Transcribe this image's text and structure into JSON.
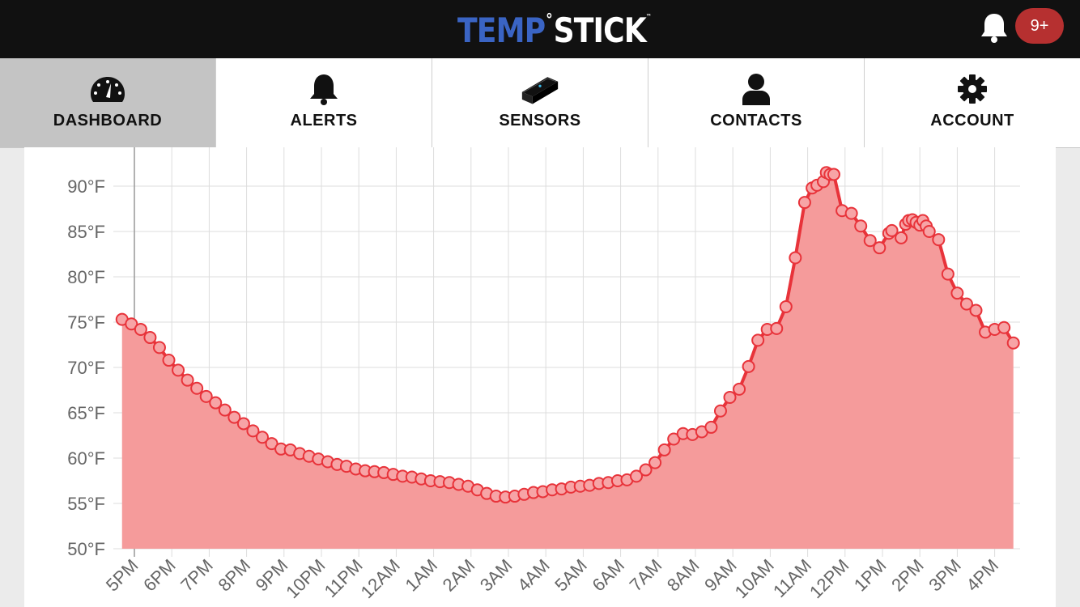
{
  "header": {
    "logo_temp": "TEMP",
    "logo_degree": "°",
    "logo_stick": "STICK",
    "logo_tm": "™",
    "notification_badge": "9+"
  },
  "nav": {
    "items": [
      {
        "label": "DASHBOARD",
        "icon": "gauge-icon",
        "active": true
      },
      {
        "label": "ALERTS",
        "icon": "bell-icon",
        "active": false
      },
      {
        "label": "SENSORS",
        "icon": "sensor-device-icon",
        "active": false
      },
      {
        "label": "CONTACTS",
        "icon": "person-icon",
        "active": false
      },
      {
        "label": "ACCOUNT",
        "icon": "gear-icon",
        "active": false
      }
    ]
  },
  "colors": {
    "topbar": "#111111",
    "logo_blue": "#3a64c4",
    "badge": "#b63030",
    "line": "#e8333a",
    "fill": "#f59b9b",
    "point_fill": "#f7a4a6"
  },
  "chart_data": {
    "type": "area",
    "title": "",
    "xlabel": "",
    "ylabel": "",
    "y_unit": "°F",
    "ylim": [
      50,
      95
    ],
    "y_ticks": [
      "50°F",
      "55°F",
      "60°F",
      "65°F",
      "70°F",
      "75°F",
      "80°F",
      "85°F",
      "90°F"
    ],
    "x_ticks": [
      "5PM",
      "6PM",
      "7PM",
      "8PM",
      "9PM",
      "10PM",
      "11PM",
      "12AM",
      "1AM",
      "2AM",
      "3AM",
      "4AM",
      "5AM",
      "6AM",
      "7AM",
      "8AM",
      "9AM",
      "10AM",
      "11AM",
      "12PM",
      "1PM",
      "2PM",
      "3PM",
      "4PM"
    ],
    "x_start": "4:40PM",
    "x_end": "4:30PM",
    "grid": true,
    "series": [
      {
        "points": [
          [
            -0.33,
            75.3
          ],
          [
            -0.08,
            74.8
          ],
          [
            0.17,
            74.2
          ],
          [
            0.42,
            73.3
          ],
          [
            0.67,
            72.2
          ],
          [
            0.92,
            70.8
          ],
          [
            1.17,
            69.7
          ],
          [
            1.42,
            68.6
          ],
          [
            1.67,
            67.7
          ],
          [
            1.92,
            66.8
          ],
          [
            2.17,
            66.1
          ],
          [
            2.42,
            65.3
          ],
          [
            2.67,
            64.5
          ],
          [
            2.92,
            63.8
          ],
          [
            3.17,
            63.0
          ],
          [
            3.42,
            62.3
          ],
          [
            3.67,
            61.6
          ],
          [
            3.92,
            61.0
          ],
          [
            4.17,
            60.9
          ],
          [
            4.42,
            60.5
          ],
          [
            4.67,
            60.2
          ],
          [
            4.92,
            59.9
          ],
          [
            5.17,
            59.6
          ],
          [
            5.42,
            59.3
          ],
          [
            5.67,
            59.1
          ],
          [
            5.92,
            58.8
          ],
          [
            6.17,
            58.6
          ],
          [
            6.42,
            58.5
          ],
          [
            6.67,
            58.4
          ],
          [
            6.92,
            58.2
          ],
          [
            7.17,
            58.0
          ],
          [
            7.42,
            57.9
          ],
          [
            7.67,
            57.7
          ],
          [
            7.92,
            57.5
          ],
          [
            8.17,
            57.4
          ],
          [
            8.42,
            57.3
          ],
          [
            8.67,
            57.1
          ],
          [
            8.92,
            56.9
          ],
          [
            9.17,
            56.5
          ],
          [
            9.42,
            56.1
          ],
          [
            9.67,
            55.8
          ],
          [
            9.92,
            55.7
          ],
          [
            10.17,
            55.8
          ],
          [
            10.42,
            56.0
          ],
          [
            10.67,
            56.2
          ],
          [
            10.92,
            56.3
          ],
          [
            11.17,
            56.5
          ],
          [
            11.42,
            56.6
          ],
          [
            11.67,
            56.8
          ],
          [
            11.92,
            56.9
          ],
          [
            12.17,
            57.0
          ],
          [
            12.42,
            57.2
          ],
          [
            12.67,
            57.3
          ],
          [
            12.92,
            57.5
          ],
          [
            13.17,
            57.6
          ],
          [
            13.42,
            58.0
          ],
          [
            13.67,
            58.7
          ],
          [
            13.92,
            59.5
          ],
          [
            14.17,
            60.9
          ],
          [
            14.42,
            62.1
          ],
          [
            14.67,
            62.7
          ],
          [
            14.92,
            62.6
          ],
          [
            15.17,
            62.9
          ],
          [
            15.42,
            63.4
          ],
          [
            15.67,
            65.2
          ],
          [
            15.92,
            66.7
          ],
          [
            16.17,
            67.6
          ],
          [
            16.42,
            70.1
          ],
          [
            16.67,
            73.0
          ],
          [
            16.92,
            74.2
          ],
          [
            17.17,
            74.3
          ],
          [
            17.42,
            76.7
          ],
          [
            17.67,
            82.1
          ],
          [
            17.92,
            88.2
          ],
          [
            18.12,
            89.8
          ],
          [
            18.25,
            90.1
          ],
          [
            18.42,
            90.5
          ],
          [
            18.5,
            91.5
          ],
          [
            18.6,
            91.3
          ],
          [
            18.7,
            91.3
          ],
          [
            18.92,
            87.3
          ],
          [
            19.17,
            87.0
          ],
          [
            19.42,
            85.6
          ],
          [
            19.67,
            84.0
          ],
          [
            19.92,
            83.2
          ],
          [
            20.17,
            84.8
          ],
          [
            20.25,
            85.1
          ],
          [
            20.5,
            84.3
          ],
          [
            20.62,
            85.8
          ],
          [
            20.7,
            86.2
          ],
          [
            20.8,
            86.3
          ],
          [
            20.9,
            86.0
          ],
          [
            21.0,
            85.7
          ],
          [
            21.08,
            86.2
          ],
          [
            21.17,
            85.6
          ],
          [
            21.25,
            85.0
          ],
          [
            21.5,
            84.1
          ],
          [
            21.75,
            80.3
          ],
          [
            22.0,
            78.2
          ],
          [
            22.25,
            77.0
          ],
          [
            22.5,
            76.3
          ],
          [
            22.75,
            73.9
          ],
          [
            23.0,
            74.2
          ],
          [
            23.25,
            74.4
          ],
          [
            23.5,
            72.7
          ]
        ]
      }
    ]
  }
}
